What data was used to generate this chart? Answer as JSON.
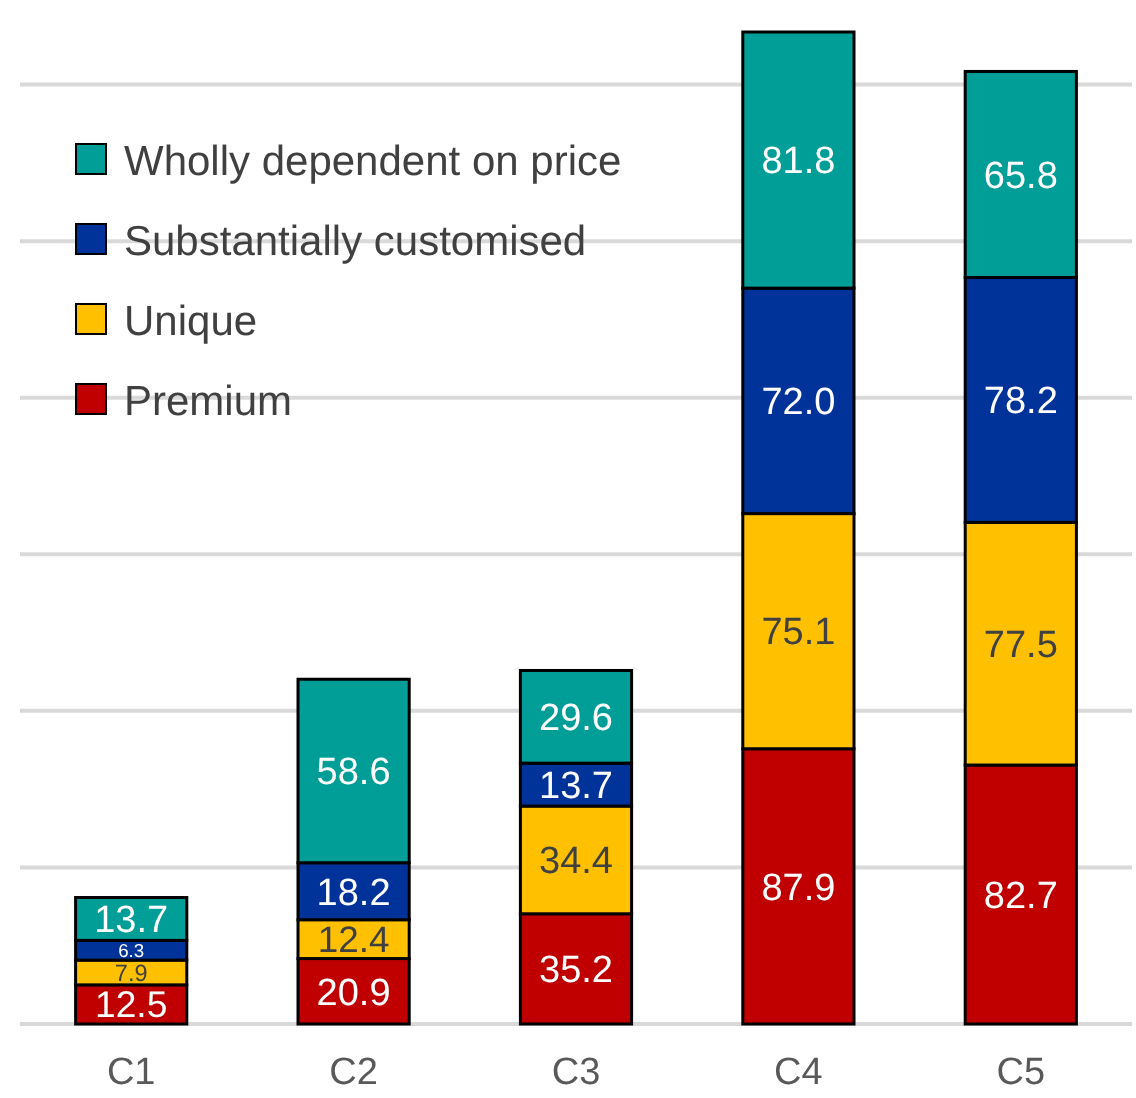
{
  "chart_data": {
    "type": "bar",
    "stacked": true,
    "categories": [
      "C1",
      "C2",
      "C3",
      "C4",
      "C5"
    ],
    "series": [
      {
        "name": "Premium",
        "color": "#c00000",
        "values": [
          12.5,
          20.9,
          35.2,
          87.9,
          82.7
        ]
      },
      {
        "name": "Unique",
        "color": "#ffc000",
        "values": [
          7.9,
          12.4,
          34.4,
          75.1,
          77.5
        ]
      },
      {
        "name": "Substantially customised",
        "color": "#003399",
        "values": [
          6.3,
          18.2,
          13.7,
          72.0,
          78.2
        ],
        "value_labels": [
          "6.3",
          "18.2",
          "13.7",
          "72.0",
          "78.2"
        ]
      },
      {
        "name": "Wholly dependent on price",
        "color": "#009e96",
        "values": [
          13.7,
          58.6,
          29.6,
          81.8,
          65.8
        ]
      }
    ],
    "yticks": [
      0,
      {
        "value": 50,
        "label": null
      },
      {
        "value": 100,
        "label": null
      },
      {
        "value": 150,
        "label": null
      },
      {
        "value": 200,
        "label": null
      },
      {
        "value": 250,
        "label": null
      },
      {
        "value": 300,
        "label": null
      }
    ],
    "grid": "y",
    "tick_labels": "x",
    "data_labels": true,
    "legend": "top left"
  }
}
